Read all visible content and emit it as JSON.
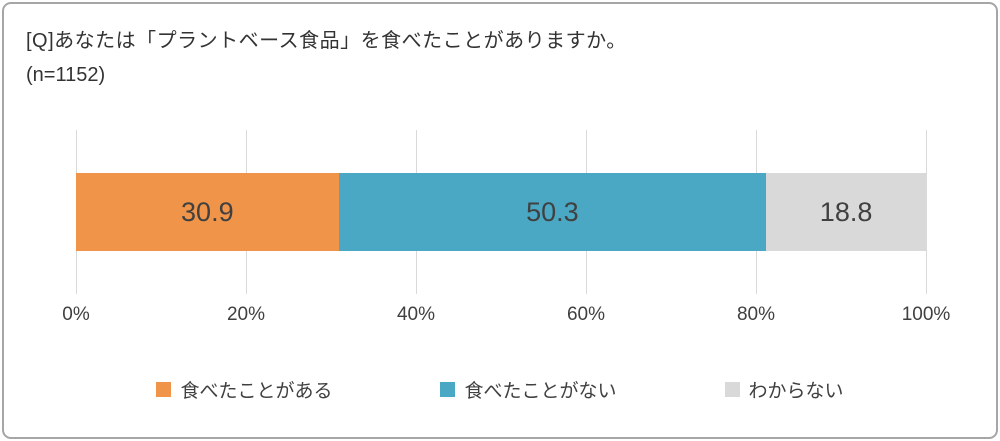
{
  "header": {
    "title": "[Q]あなたは「プラントベース食品」を食べたことがありますか。",
    "sample": "(n=1152)"
  },
  "chart_data": {
    "type": "bar",
    "subtype": "stacked-horizontal-100pct",
    "title": "[Q]あなたは「プラントベース食品」を食べたことがありますか。",
    "sample_size_label": "(n=1152)",
    "series": [
      {
        "name": "食べたことがある",
        "value": 30.9,
        "color": "#f0944a"
      },
      {
        "name": "食べたことがない",
        "value": 50.3,
        "color": "#4aa8c5"
      },
      {
        "name": "わからない",
        "value": 18.8,
        "color": "#d9d9d9"
      }
    ],
    "xlim": [
      0,
      100
    ],
    "x_ticks": [
      "0%",
      "20%",
      "40%",
      "60%",
      "80%",
      "100%"
    ],
    "grid": true,
    "legend_position": "bottom",
    "value_label_color": "#404040"
  }
}
